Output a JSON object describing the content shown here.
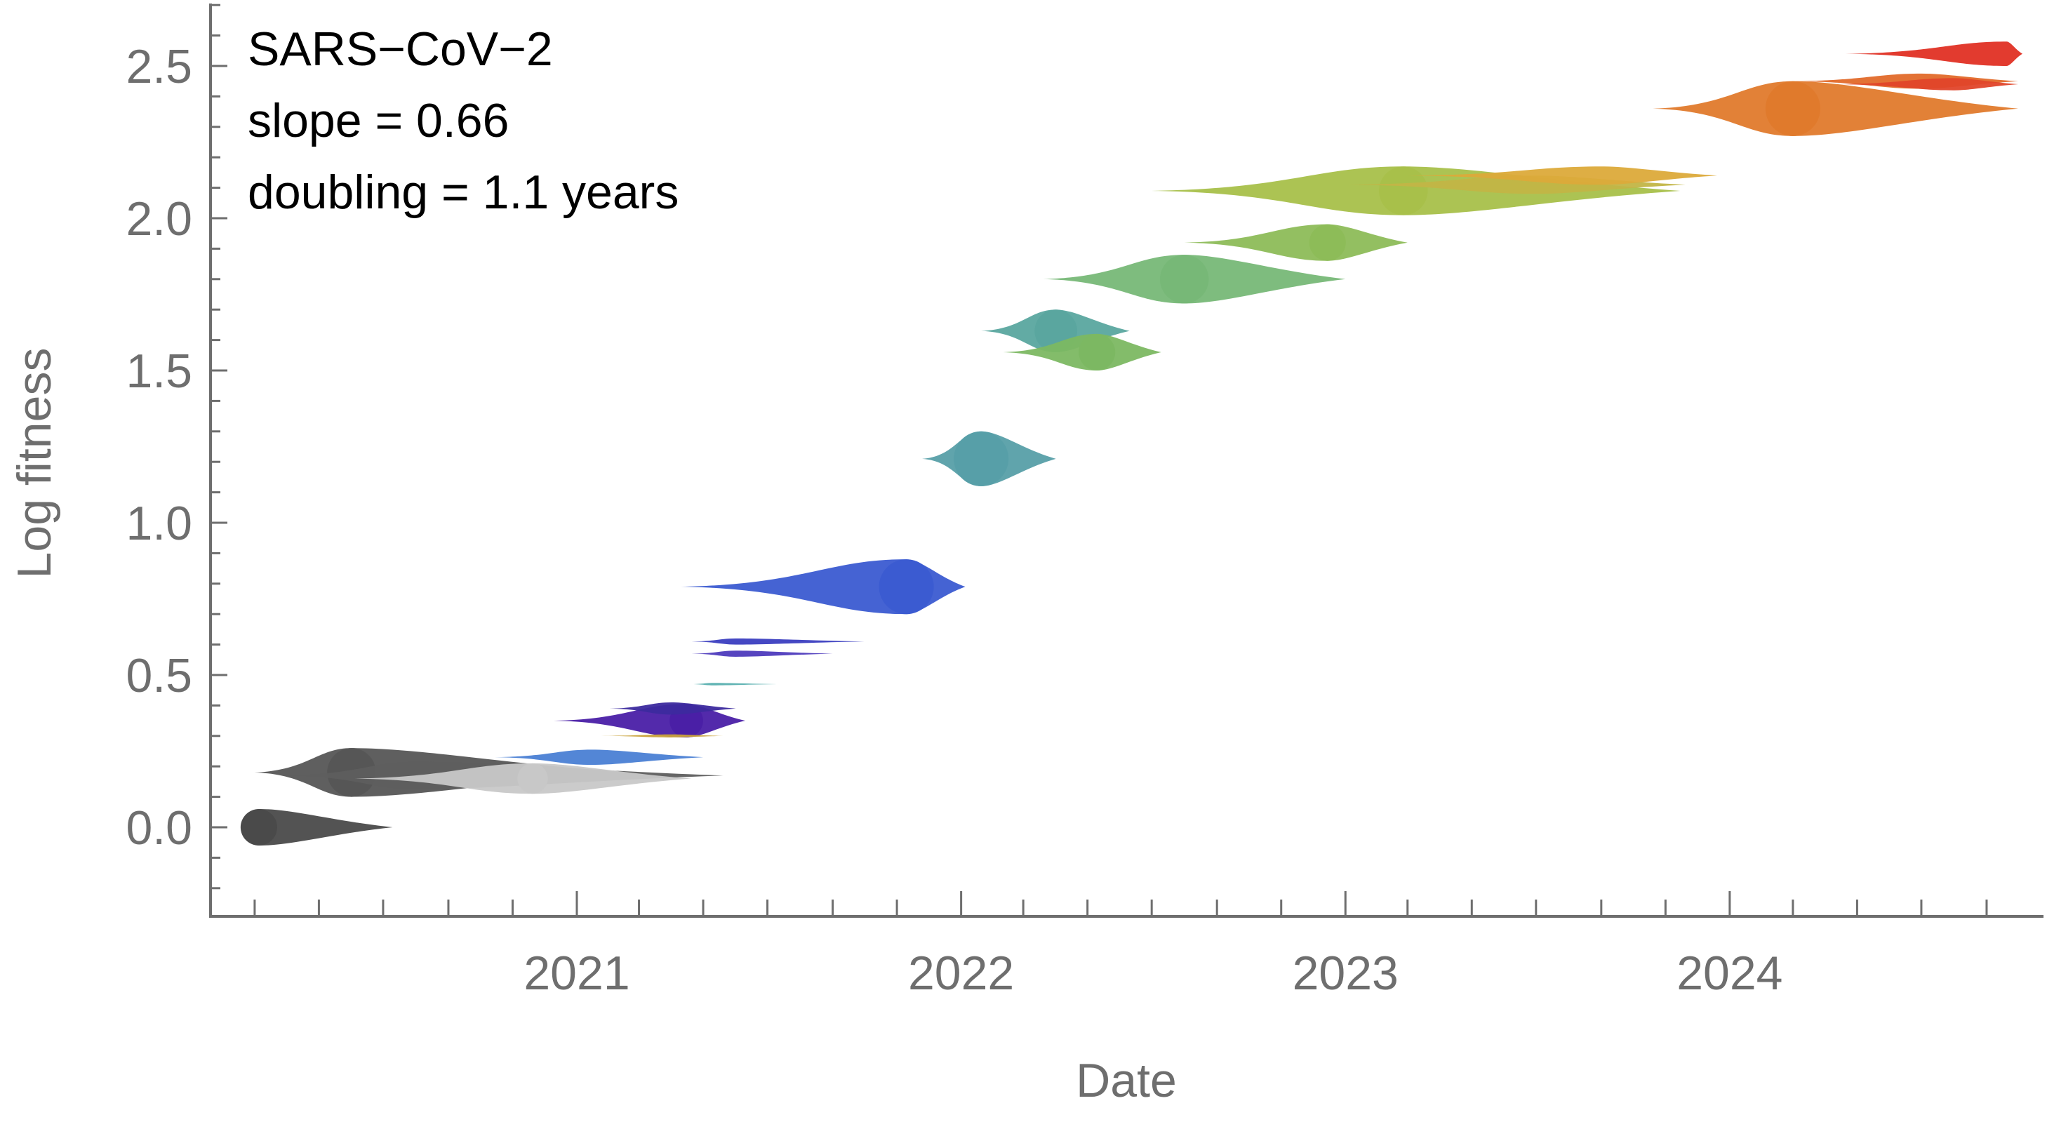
{
  "chart_data": {
    "type": "scatter",
    "title": "",
    "xlabel": "Date",
    "ylabel": "Log fitness",
    "x_axis": {
      "type": "date",
      "range": [
        "2020-01-01",
        "2024-10-15"
      ],
      "ticks": [
        "2021",
        "2022",
        "2023",
        "2024"
      ],
      "minor_ticks": "monthly"
    },
    "y_axis": {
      "range": [
        -0.3,
        2.7
      ],
      "ticks": [
        "0.0",
        "0.5",
        "1.0",
        "1.5",
        "2.0",
        "2.5"
      ]
    },
    "grid": false,
    "legend": "none",
    "annotations": [
      "SARS−CoV−2",
      "slope = 0.66",
      "doubling = 1.1 years"
    ],
    "series": [
      {
        "color": "#4a4a4a",
        "y": 0.0,
        "start": "2020-02-20",
        "peak": "2020-03-05",
        "end": "2020-07-10",
        "peak_width": 0.12
      },
      {
        "color": "#565656",
        "y": 0.18,
        "start": "2020-03-01",
        "peak": "2020-06-01",
        "end": "2021-02-20",
        "peak_width": 0.16
      },
      {
        "color": "#5e5e5e",
        "y": 0.17,
        "start": "2020-04-01",
        "peak": "2020-08-01",
        "end": "2021-05-20",
        "peak_width": 0.09
      },
      {
        "color": "#c8c8c8",
        "y": 0.16,
        "start": "2020-06-01",
        "peak": "2020-11-20",
        "end": "2021-04-20",
        "peak_width": 0.1
      },
      {
        "color": "#4a7fd4",
        "y": 0.23,
        "start": "2020-10-15",
        "peak": "2021-01-15",
        "end": "2021-05-01",
        "peak_width": 0.05
      },
      {
        "color": "#4a1fa6",
        "y": 0.35,
        "start": "2020-12-10",
        "peak": "2021-04-15",
        "end": "2021-06-10",
        "peak_width": 0.11
      },
      {
        "color": "#3c2a9e",
        "y": 0.39,
        "start": "2021-02-01",
        "peak": "2021-04-01",
        "end": "2021-06-01",
        "peak_width": 0.04
      },
      {
        "color": "#c9a23a",
        "y": 0.3,
        "start": "2021-01-20",
        "peak": "2021-04-01",
        "end": "2021-05-20",
        "peak_width": 0.01
      },
      {
        "color": "#5ab0b0",
        "y": 0.47,
        "start": "2021-04-20",
        "peak": "2021-05-10",
        "end": "2021-07-10",
        "peak_width": 0.008
      },
      {
        "color": "#3b3ec0",
        "y": 0.61,
        "start": "2021-04-20",
        "peak": "2021-06-01",
        "end": "2021-10-01",
        "peak_width": 0.02
      },
      {
        "color": "#4e3bbd",
        "y": 0.57,
        "start": "2021-04-20",
        "peak": "2021-06-01",
        "end": "2021-09-01",
        "peak_width": 0.02
      },
      {
        "color": "#3b5bd1",
        "y": 0.79,
        "start": "2021-04-10",
        "peak": "2021-11-10",
        "end": "2022-01-05",
        "peak_width": 0.18
      },
      {
        "color": "#579fa8",
        "y": 1.21,
        "start": "2021-11-25",
        "peak": "2022-01-20",
        "end": "2022-04-01",
        "peak_width": 0.18
      },
      {
        "color": "#5aa69f",
        "y": 1.63,
        "start": "2022-01-20",
        "peak": "2022-04-01",
        "end": "2022-06-10",
        "peak_width": 0.14
      },
      {
        "color": "#7cb862",
        "y": 1.56,
        "start": "2022-02-10",
        "peak": "2022-05-10",
        "end": "2022-07-10",
        "peak_width": 0.12
      },
      {
        "color": "#77b877",
        "y": 1.8,
        "start": "2022-03-20",
        "peak": "2022-08-01",
        "end": "2023-01-01",
        "peak_width": 0.16
      },
      {
        "color": "#8dbc58",
        "y": 1.92,
        "start": "2022-08-01",
        "peak": "2022-12-15",
        "end": "2023-03-01",
        "peak_width": 0.12
      },
      {
        "color": "#a8c04a",
        "y": 2.09,
        "start": "2022-07-01",
        "peak": "2023-02-25",
        "end": "2023-11-15",
        "peak_width": 0.16
      },
      {
        "color": "#c2b546",
        "y": 2.11,
        "start": "2023-01-01",
        "peak": "2023-07-01",
        "end": "2023-11-20",
        "peak_width": 0.06
      },
      {
        "color": "#dcaa3a",
        "y": 2.14,
        "start": "2023-03-01",
        "peak": "2023-09-01",
        "end": "2023-12-20",
        "peak_width": 0.06
      },
      {
        "color": "#e07a2c",
        "y": 2.36,
        "start": "2023-10-20",
        "peak": "2024-03-01",
        "end": "2024-10-01",
        "peak_width": 0.18
      },
      {
        "color": "#e26a2a",
        "y": 2.45,
        "start": "2024-03-01",
        "peak": "2024-07-01",
        "end": "2024-10-01",
        "peak_width": 0.05
      },
      {
        "color": "#e0452a",
        "y": 2.44,
        "start": "2024-04-10",
        "peak": "2024-08-01",
        "end": "2024-10-01",
        "peak_width": 0.04
      },
      {
        "color": "#e03024",
        "y": 2.54,
        "start": "2024-04-20",
        "peak": "2024-09-20",
        "end": "2024-10-05",
        "peak_width": 0.08
      }
    ]
  }
}
